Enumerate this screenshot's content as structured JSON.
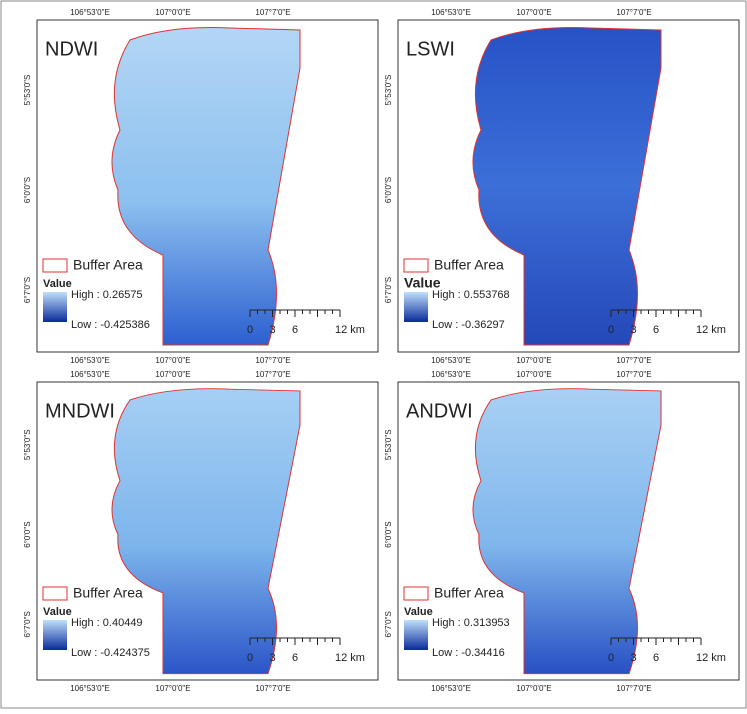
{
  "panels": [
    {
      "title": "NDWI",
      "legend": {
        "buffer": "Buffer Area",
        "value": "Value",
        "high": "High : 0.26575",
        "low": "Low : -0.425386"
      }
    },
    {
      "title": "LSWI",
      "legend": {
        "buffer": "Buffer Area",
        "value": "Value",
        "high": "High : 0.553768",
        "low": "Low : -0.36297"
      }
    },
    {
      "title": "MNDWI",
      "legend": {
        "buffer": "Buffer Area",
        "value": "Value",
        "high": "High : 0.40449",
        "low": "Low : -0.424375"
      }
    },
    {
      "title": "ANDWI",
      "legend": {
        "buffer": "Buffer Area",
        "value": "Value",
        "high": "High : 0.313953",
        "low": "Low : -0.34416"
      }
    }
  ],
  "x_labels": [
    "106°53'0\"E",
    "107°0'0\"E",
    "107°7'0\"E"
  ],
  "y_labels": [
    "5°53'0\"S",
    "6°0'0\"S",
    "6°7'0\"S"
  ],
  "scale_bar": [
    "0",
    "3",
    "6",
    "12 km"
  ]
}
